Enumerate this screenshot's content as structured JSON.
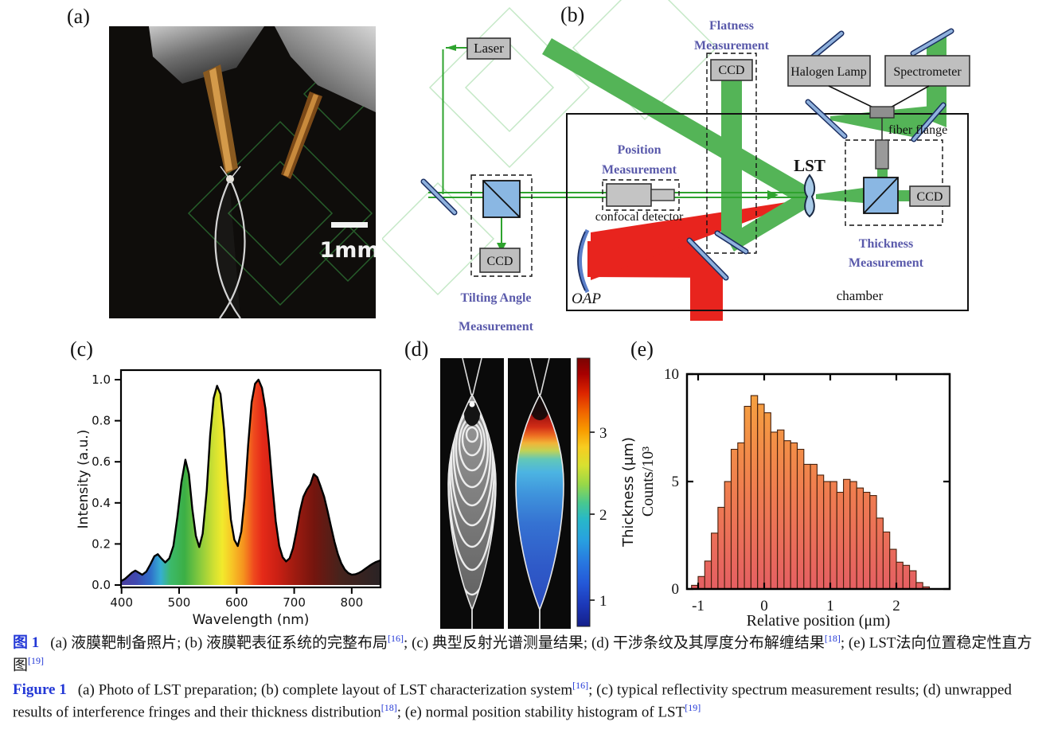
{
  "panels": {
    "a": {
      "label": "(a)",
      "scale_bar_label": "1mm"
    },
    "b": {
      "label": "(b)",
      "laser": "Laser",
      "ccd": "CCD",
      "flatness_l1": "Flatness",
      "flatness_l2": "Measurement",
      "position_l1": "Position",
      "position_l2": "Measurement",
      "tilting_l1": "Tilting Angle",
      "tilting_l2": "Measurement",
      "thickness_l1": "Thickness",
      "thickness_l2": "Measurement",
      "halogen_lamp": "Halogen Lamp",
      "spectrometer": "Spectrometer",
      "fiber_flange": "fiber flange",
      "confocal_detector": "confocal detector",
      "lst": "LST",
      "oap": "OAP",
      "chamber": "chamber"
    },
    "c": {
      "label": "(c)"
    },
    "d": {
      "label": "(d)",
      "colorbar_title": "Thickness (μm)",
      "colorbar_ticks": [
        "3",
        "2",
        "1"
      ]
    },
    "e": {
      "label": "(e)"
    }
  },
  "colors": {
    "green_beam": "#54b457",
    "green_line": "#2ea32e",
    "red_beam": "#e8241e",
    "mirror_blue": "#8fb1dd",
    "cube_blue": "#8ab7e3",
    "label_blue": "#5a5aab",
    "caption_blue": "#2338d6",
    "bar_top": "#f4a33c",
    "bar_bottom": "#e8635f"
  },
  "caption": {
    "zh_label": "图 1",
    "zh_s1": "(a) 液膜靶制备照片; (b) 液膜靶表征系统的完整布局",
    "ref16": "[16]",
    "zh_s2": "; (c) 典型反射光谱测量结果; (d) 干涉条纹及其厚度分布解缠结果",
    "ref18": "[18]",
    "zh_s3": "; (e) LST法向位置稳定性直方图",
    "ref19": "[19]",
    "en_label": "Figure 1",
    "en_s1": "(a) Photo of LST preparation; (b) complete layout of LST characterization system",
    "en_s2": "; (c) typical reflectivity spectrum measurement results; (d) unwrapped results of interference fringes and their thickness distribution",
    "en_s3": "; (e) normal position stability histogram of LST"
  },
  "chart_data": [
    {
      "id": "reflectivity_spectrum",
      "type": "area",
      "title": "",
      "xlabel": "Wavelength (nm)",
      "ylabel": "Intensity (a.u.)",
      "xlim": [
        400,
        850
      ],
      "ylim": [
        0,
        1.05
      ],
      "xticks": [
        400,
        500,
        600,
        700,
        800
      ],
      "xtick_labels": [
        "400",
        "500",
        "600",
        "700",
        "800"
      ],
      "yticks": [
        0,
        0.2,
        0.4,
        0.6,
        0.8,
        1.0
      ],
      "ytick_labels": [
        "0.0",
        "0.2",
        "0.4",
        "0.6",
        "0.8",
        "1.0"
      ],
      "grid": false,
      "fill": "spectral-gradient",
      "line_color": "#000000",
      "x": [
        400,
        406,
        412,
        418,
        424,
        430,
        436,
        443,
        450,
        457,
        463,
        469,
        476,
        483,
        490,
        497,
        504,
        511,
        517,
        523,
        529,
        535,
        541,
        548,
        554,
        560,
        566,
        572,
        578,
        584,
        590,
        596,
        602,
        608,
        614,
        620,
        626,
        632,
        638,
        644,
        650,
        656,
        662,
        668,
        674,
        680,
        686,
        692,
        698,
        704,
        710,
        716,
        722,
        728,
        734,
        740,
        746,
        752,
        758,
        764,
        770,
        776,
        782,
        788,
        794,
        800,
        806,
        812,
        818,
        824,
        830,
        836,
        842,
        850
      ],
      "y": [
        0.02,
        0.03,
        0.045,
        0.06,
        0.07,
        0.06,
        0.05,
        0.065,
        0.1,
        0.14,
        0.15,
        0.13,
        0.11,
        0.13,
        0.19,
        0.33,
        0.5,
        0.61,
        0.54,
        0.37,
        0.24,
        0.185,
        0.25,
        0.46,
        0.73,
        0.91,
        0.97,
        0.93,
        0.76,
        0.52,
        0.32,
        0.22,
        0.19,
        0.26,
        0.43,
        0.68,
        0.89,
        0.98,
        1.0,
        0.96,
        0.86,
        0.69,
        0.49,
        0.31,
        0.19,
        0.135,
        0.115,
        0.13,
        0.18,
        0.265,
        0.36,
        0.43,
        0.465,
        0.49,
        0.54,
        0.525,
        0.48,
        0.43,
        0.36,
        0.285,
        0.21,
        0.15,
        0.105,
        0.075,
        0.058,
        0.05,
        0.052,
        0.058,
        0.068,
        0.08,
        0.092,
        0.103,
        0.112,
        0.12
      ]
    },
    {
      "id": "position_histogram",
      "type": "bar",
      "title": "",
      "xlabel": "Relative position (μm)",
      "ylabel": "Counts/10³",
      "xlim": [
        -1.17,
        2.8
      ],
      "ylim": [
        0,
        10
      ],
      "xticks": [
        -1,
        0,
        1,
        2
      ],
      "xtick_labels": [
        "-1",
        "0",
        "1",
        "2"
      ],
      "yticks": [
        0,
        5,
        10
      ],
      "ytick_labels": [
        "0",
        "5",
        "10"
      ],
      "grid": false,
      "bin_start": -1.1,
      "bin_width": 0.1,
      "values": [
        0.17,
        0.58,
        1.3,
        2.6,
        3.8,
        5.0,
        6.5,
        6.8,
        8.5,
        9.0,
        8.6,
        8.2,
        7.3,
        7.4,
        6.9,
        6.8,
        6.5,
        5.8,
        5.8,
        5.3,
        5.0,
        5.0,
        4.5,
        5.1,
        5.0,
        4.7,
        4.5,
        4.35,
        3.3,
        2.65,
        1.85,
        1.25,
        1.1,
        0.85,
        0.3,
        0.1
      ]
    },
    {
      "id": "thickness_colorbar",
      "type": "heatmap",
      "label": "Thickness (μm)",
      "ticks": [
        1,
        2,
        3
      ],
      "colormap": "jet",
      "orientation": "vertical"
    }
  ]
}
